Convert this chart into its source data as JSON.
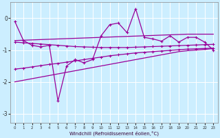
{
  "xlabel": "Windchill (Refroidissement éolien,°C)",
  "bg_color": "#cceeff",
  "line_color": "#990099",
  "x_data": [
    0,
    1,
    2,
    3,
    4,
    5,
    6,
    7,
    8,
    9,
    10,
    11,
    12,
    13,
    14,
    15,
    16,
    17,
    18,
    19,
    20,
    21,
    22,
    23
  ],
  "y_main": [
    -0.1,
    -0.7,
    -0.85,
    -0.9,
    -0.85,
    -2.6,
    -1.5,
    -1.3,
    -1.4,
    -1.3,
    -0.55,
    -0.2,
    -0.15,
    -0.45,
    0.3,
    -0.6,
    -0.65,
    -0.72,
    -0.55,
    -0.75,
    -0.6,
    -0.6,
    -0.75,
    -1.0
  ],
  "y_band_upper": [
    -0.7,
    -0.69,
    -0.68,
    -0.67,
    -0.66,
    -0.65,
    -0.64,
    -0.63,
    -0.62,
    -0.61,
    -0.6,
    -0.59,
    -0.58,
    -0.57,
    -0.56,
    -0.55,
    -0.54,
    -0.53,
    -0.52,
    -0.51,
    -0.5,
    -0.5,
    -0.5,
    -0.5
  ],
  "y_band_lower": [
    -2.0,
    -1.95,
    -1.9,
    -1.85,
    -1.8,
    -1.75,
    -1.7,
    -1.65,
    -1.6,
    -1.55,
    -1.5,
    -1.45,
    -1.4,
    -1.35,
    -1.3,
    -1.25,
    -1.2,
    -1.15,
    -1.1,
    -1.05,
    -1.02,
    -1.0,
    -0.98,
    -0.95
  ],
  "y_inner_upper": [
    -0.75,
    -0.77,
    -0.79,
    -0.81,
    -0.83,
    -0.85,
    -0.87,
    -0.89,
    -0.9,
    -0.91,
    -0.92,
    -0.92,
    -0.92,
    -0.92,
    -0.91,
    -0.9,
    -0.89,
    -0.88,
    -0.87,
    -0.86,
    -0.85,
    -0.84,
    -0.83,
    -0.82
  ],
  "y_inner_lower": [
    -1.6,
    -1.57,
    -1.53,
    -1.49,
    -1.45,
    -1.42,
    -1.38,
    -1.34,
    -1.3,
    -1.26,
    -1.22,
    -1.18,
    -1.15,
    -1.12,
    -1.09,
    -1.07,
    -1.05,
    -1.03,
    -1.01,
    -0.99,
    -0.97,
    -0.96,
    -0.95,
    -0.94
  ],
  "ylim": [
    -3.3,
    0.5
  ],
  "xlim": [
    -0.5,
    23.5
  ],
  "yticks": [
    0,
    -1,
    -2,
    -3
  ],
  "xticks": [
    0,
    1,
    2,
    3,
    4,
    5,
    6,
    7,
    8,
    9,
    10,
    11,
    12,
    13,
    14,
    15,
    16,
    17,
    18,
    19,
    20,
    21,
    22,
    23
  ]
}
